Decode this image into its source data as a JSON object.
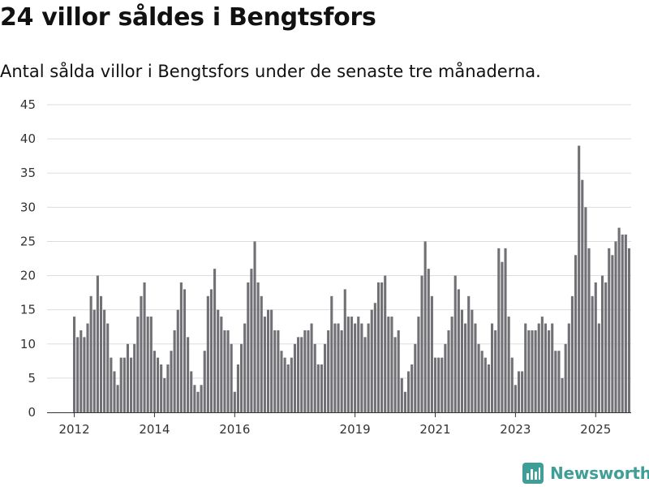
{
  "title": "24 villor såldes i Bengtsfors",
  "subtitle": "Antal sålda villor i Bengtsfors under de senaste tre månaderna.",
  "brand": {
    "name": "Newsworthy",
    "color": "#3f9e96"
  },
  "colors": {
    "bar": "#717075",
    "highlight": "#2b9c93",
    "grid": "#dddddd",
    "axis": "#333333"
  },
  "chart_data": {
    "type": "bar",
    "title": "24 villor såldes i Bengtsfors",
    "xlabel": "",
    "ylabel": "",
    "ylim": [
      0,
      45
    ],
    "yticks": [
      0,
      5,
      10,
      15,
      20,
      25,
      30,
      35,
      40,
      45
    ],
    "xticks": [
      {
        "label": "2012",
        "index": 0
      },
      {
        "label": "2014",
        "index": 24
      },
      {
        "label": "2016",
        "index": 48
      },
      {
        "label": "2019",
        "index": 84
      },
      {
        "label": "2021",
        "index": 108
      },
      {
        "label": "2023",
        "index": 132
      },
      {
        "label": "2025",
        "index": 156
      }
    ],
    "frequency": "monthly rolling 3-month total",
    "highlight_index": 167,
    "highlight_label": "24",
    "values": [
      14,
      11,
      12,
      11,
      13,
      17,
      15,
      20,
      17,
      15,
      13,
      8,
      6,
      4,
      8,
      8,
      10,
      8,
      10,
      14,
      17,
      19,
      14,
      14,
      9,
      8,
      7,
      5,
      7,
      9,
      12,
      15,
      19,
      18,
      11,
      6,
      4,
      3,
      4,
      9,
      17,
      18,
      21,
      15,
      14,
      12,
      12,
      10,
      3,
      7,
      10,
      13,
      19,
      21,
      25,
      19,
      17,
      14,
      15,
      15,
      12,
      12,
      9,
      8,
      7,
      8,
      10,
      11,
      11,
      12,
      12,
      13,
      10,
      7,
      7,
      10,
      12,
      17,
      13,
      13,
      12,
      18,
      14,
      14,
      13,
      14,
      13,
      11,
      13,
      15,
      16,
      19,
      19,
      20,
      14,
      14,
      11,
      12,
      5,
      3,
      6,
      7,
      10,
      14,
      20,
      25,
      21,
      17,
      8,
      8,
      8,
      10,
      12,
      14,
      20,
      18,
      15,
      13,
      17,
      15,
      13,
      10,
      9,
      8,
      7,
      13,
      12,
      24,
      22,
      24,
      14,
      8,
      4,
      6,
      6,
      13,
      12,
      12,
      12,
      13,
      14,
      13,
      12,
      13,
      9,
      9,
      5,
      10,
      13,
      17,
      23,
      39,
      34,
      30,
      24,
      17,
      19,
      13,
      20,
      19,
      24,
      23,
      25,
      27,
      26,
      26,
      24
    ]
  }
}
